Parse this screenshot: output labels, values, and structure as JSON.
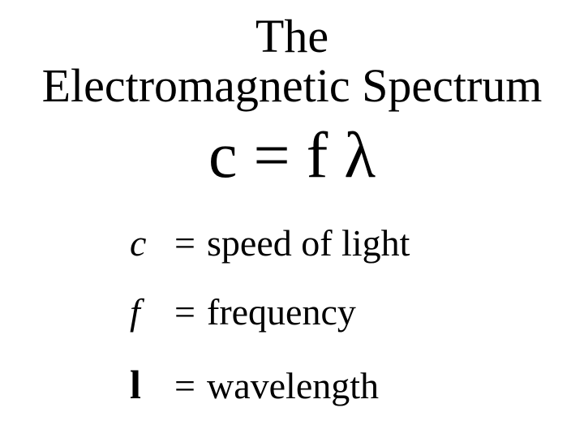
{
  "background_color": "#ffffff",
  "text_color": "#000000",
  "font_family": "Times New Roman",
  "title": {
    "line1": "The",
    "line2": "Electromagnetic Spectrum",
    "fontsize": 58
  },
  "equation": {
    "text": "c = f λ",
    "fontsize": 80
  },
  "definitions": {
    "fontsize": 46,
    "rows": [
      {
        "symbol": "c",
        "symbol_style": "italic",
        "equals": "=",
        "description": "speed of light"
      },
      {
        "symbol": "f",
        "symbol_style": "italic",
        "equals": "=",
        "description": "frequency"
      },
      {
        "symbol": "l",
        "symbol_style": "symbol-bold",
        "equals": "=",
        "description": "wavelength"
      }
    ]
  }
}
